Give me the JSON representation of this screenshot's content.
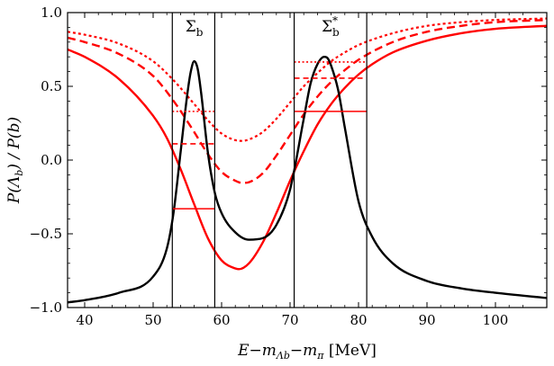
{
  "chart_data": {
    "type": "line",
    "title": "",
    "xlabel": "E−mΛ_b−mπ  [MeV]",
    "xlabel_parts": {
      "lead": "E−m",
      "sub1": "Λb",
      "mid": "−m",
      "sub2": "π",
      "tail": "  [MeV]"
    },
    "ylabel": "P(Λb) / P(b)",
    "ylabel_parts": {
      "a": "P(Λ",
      "b_sub": "b",
      "c": ") / P(b)"
    },
    "xlim": [
      37.5,
      107.5
    ],
    "ylim": [
      -1.0,
      1.0
    ],
    "xticks": [
      40,
      50,
      60,
      70,
      80,
      90,
      100
    ],
    "yticks": [
      -1.0,
      -0.5,
      0.0,
      0.5,
      1.0
    ],
    "ytick_labels": [
      "−1.0",
      "−0.5",
      "0.0",
      "0.5",
      "1.0"
    ],
    "xtick_labels": [
      "40",
      "50",
      "60",
      "70",
      "80",
      "90",
      "100"
    ],
    "vertical_lines": [
      52.8,
      59.0,
      70.6,
      81.2
    ],
    "region_labels": [
      {
        "text": "Σ",
        "sub": "b",
        "sup": "",
        "x": 56.0,
        "y": 0.91
      },
      {
        "text": "Σ",
        "sub": "b",
        "sup": "*",
        "x": 75.9,
        "y": 0.91
      }
    ],
    "series": [
      {
        "name": "black",
        "color": "#000000",
        "style": "solid",
        "x": [
          37.5,
          40,
          45,
          50,
          52,
          53,
          54,
          55,
          55.5,
          56,
          56.5,
          57,
          58,
          59,
          60,
          62,
          64,
          66,
          68,
          70,
          72,
          73,
          74,
          75,
          75.5,
          76,
          77,
          78,
          80,
          82,
          85,
          90,
          95,
          100,
          107.5
        ],
        "y": [
          -0.965,
          -0.95,
          -0.9,
          -0.79,
          -0.6,
          -0.35,
          0.05,
          0.45,
          0.6,
          0.67,
          0.62,
          0.46,
          0.05,
          -0.22,
          -0.36,
          -0.49,
          -0.54,
          -0.53,
          -0.44,
          -0.2,
          0.28,
          0.52,
          0.65,
          0.7,
          0.69,
          0.64,
          0.48,
          0.22,
          -0.28,
          -0.52,
          -0.7,
          -0.82,
          -0.87,
          -0.9,
          -0.935
        ]
      },
      {
        "name": "red-solid",
        "color": "#ff0000",
        "style": "solid",
        "x": [
          37.5,
          40,
          45,
          50,
          52,
          54,
          56,
          58,
          60,
          62,
          62.5,
          64,
          66,
          68,
          70,
          72,
          74,
          76,
          78,
          80,
          82,
          85,
          90,
          95,
          100,
          107.5
        ],
        "y": [
          0.75,
          0.7,
          0.55,
          0.3,
          0.15,
          -0.06,
          -0.3,
          -0.53,
          -0.68,
          -0.735,
          -0.74,
          -0.7,
          -0.56,
          -0.36,
          -0.14,
          0.06,
          0.24,
          0.38,
          0.49,
          0.58,
          0.65,
          0.73,
          0.81,
          0.86,
          0.89,
          0.91
        ]
      },
      {
        "name": "red-dashed",
        "color": "#ff0000",
        "style": "dashed",
        "x": [
          37.5,
          40,
          45,
          50,
          53,
          56,
          58,
          60,
          62,
          63,
          64,
          66,
          68,
          70,
          72,
          74,
          76,
          78,
          80,
          85,
          90,
          95,
          100,
          107.5
        ],
        "y": [
          0.83,
          0.8,
          0.72,
          0.57,
          0.4,
          0.19,
          0.04,
          -0.08,
          -0.14,
          -0.155,
          -0.15,
          -0.09,
          0.03,
          0.17,
          0.31,
          0.43,
          0.53,
          0.61,
          0.68,
          0.8,
          0.87,
          0.91,
          0.935,
          0.95
        ]
      },
      {
        "name": "red-dotted",
        "color": "#ff0000",
        "style": "dotted",
        "x": [
          37.5,
          40,
          45,
          50,
          53,
          56,
          58,
          60,
          62,
          63,
          64,
          66,
          68,
          70,
          72,
          74,
          76,
          78,
          80,
          85,
          90,
          95,
          100,
          107.5
        ],
        "y": [
          0.87,
          0.85,
          0.79,
          0.67,
          0.54,
          0.38,
          0.27,
          0.18,
          0.135,
          0.13,
          0.14,
          0.19,
          0.28,
          0.39,
          0.5,
          0.59,
          0.67,
          0.73,
          0.78,
          0.86,
          0.91,
          0.935,
          0.95,
          0.96
        ]
      }
    ],
    "plateaus": [
      {
        "series": "red-solid",
        "style": "solid",
        "x0": 52.8,
        "x1": 59.0,
        "y": -0.33
      },
      {
        "series": "red-dashed",
        "style": "dashed",
        "x0": 52.8,
        "x1": 59.0,
        "y": 0.11
      },
      {
        "series": "red-dotted",
        "style": "dotted",
        "x0": 52.8,
        "x1": 59.0,
        "y": 0.33
      },
      {
        "series": "red-solid",
        "style": "solid",
        "x0": 70.6,
        "x1": 81.2,
        "y": 0.33
      },
      {
        "series": "red-dashed",
        "style": "dashed",
        "x0": 70.6,
        "x1": 81.2,
        "y": 0.555
      },
      {
        "series": "red-dotted",
        "style": "dotted",
        "x0": 70.6,
        "x1": 81.2,
        "y": 0.665
      }
    ],
    "grid": false,
    "legend": "none"
  }
}
